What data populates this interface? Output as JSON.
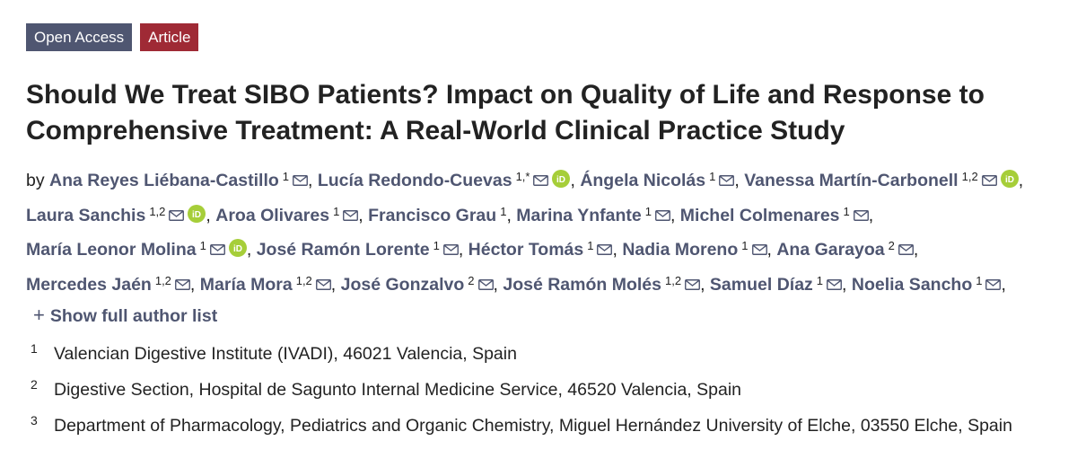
{
  "badges": {
    "open_access": "Open Access",
    "article": "Article"
  },
  "title": "Should We Treat SIBO Patients? Impact on Quality of Life and Response to Comprehensive Treatment: A Real-World Clinical Practice Study",
  "by_label": "by",
  "authors": [
    {
      "name": "Ana Reyes Liébana-Castillo",
      "sup": "1",
      "orcid": false
    },
    {
      "name": "Lucía Redondo-Cuevas",
      "sup": "1,*",
      "orcid": true
    },
    {
      "name": "Ángela Nicolás",
      "sup": "1",
      "orcid": false
    },
    {
      "name": "Vanessa Martín-Carbonell",
      "sup": "1,2",
      "orcid": true
    },
    {
      "name": "Laura Sanchis",
      "sup": "1,2",
      "orcid": true
    },
    {
      "name": "Aroa Olivares",
      "sup": "1",
      "orcid": false
    },
    {
      "name": "Francisco Grau",
      "sup": "1",
      "orcid": false,
      "no_mail": true
    },
    {
      "name": "Marina Ynfante",
      "sup": "1",
      "orcid": false
    },
    {
      "name": "Michel Colmenares",
      "sup": "1",
      "orcid": false
    },
    {
      "name": "María Leonor Molina",
      "sup": "1",
      "orcid": true
    },
    {
      "name": "José Ramón Lorente",
      "sup": "1",
      "orcid": false
    },
    {
      "name": "Héctor Tomás",
      "sup": "1",
      "orcid": false
    },
    {
      "name": "Nadia Moreno",
      "sup": "1",
      "orcid": false
    },
    {
      "name": "Ana Garayoa",
      "sup": "2",
      "orcid": false
    },
    {
      "name": "Mercedes Jaén",
      "sup": "1,2",
      "orcid": false
    },
    {
      "name": "María Mora",
      "sup": "1,2",
      "orcid": false
    },
    {
      "name": "José Gonzalvo",
      "sup": "2",
      "orcid": false
    },
    {
      "name": "José Ramón Molés",
      "sup": "1,2",
      "orcid": false
    },
    {
      "name": "Samuel Díaz",
      "sup": "1",
      "orcid": false
    },
    {
      "name": "Noelia Sancho",
      "sup": "1",
      "orcid": false
    }
  ],
  "show_full_list": "Show full author list",
  "plus_symbol": "+",
  "affiliations": [
    {
      "num": "1",
      "text": "Valencian Digestive Institute (IVADI), 46021 Valencia, Spain"
    },
    {
      "num": "2",
      "text": "Digestive Section, Hospital de Sagunto Internal Medicine Service, 46520 Valencia, Spain"
    },
    {
      "num": "3",
      "text": "Department of Pharmacology, Pediatrics and Organic Chemistry, Miguel Hernández University of Elche, 03550 Elche, Spain"
    }
  ],
  "colors": {
    "open_access_bg": "#4f5671",
    "article_bg": "#9f2a35",
    "author_link": "#4f5671",
    "orcid_green": "#a6ce39"
  },
  "icons": {
    "mail": "envelope-icon",
    "orcid": "orcid-icon"
  }
}
